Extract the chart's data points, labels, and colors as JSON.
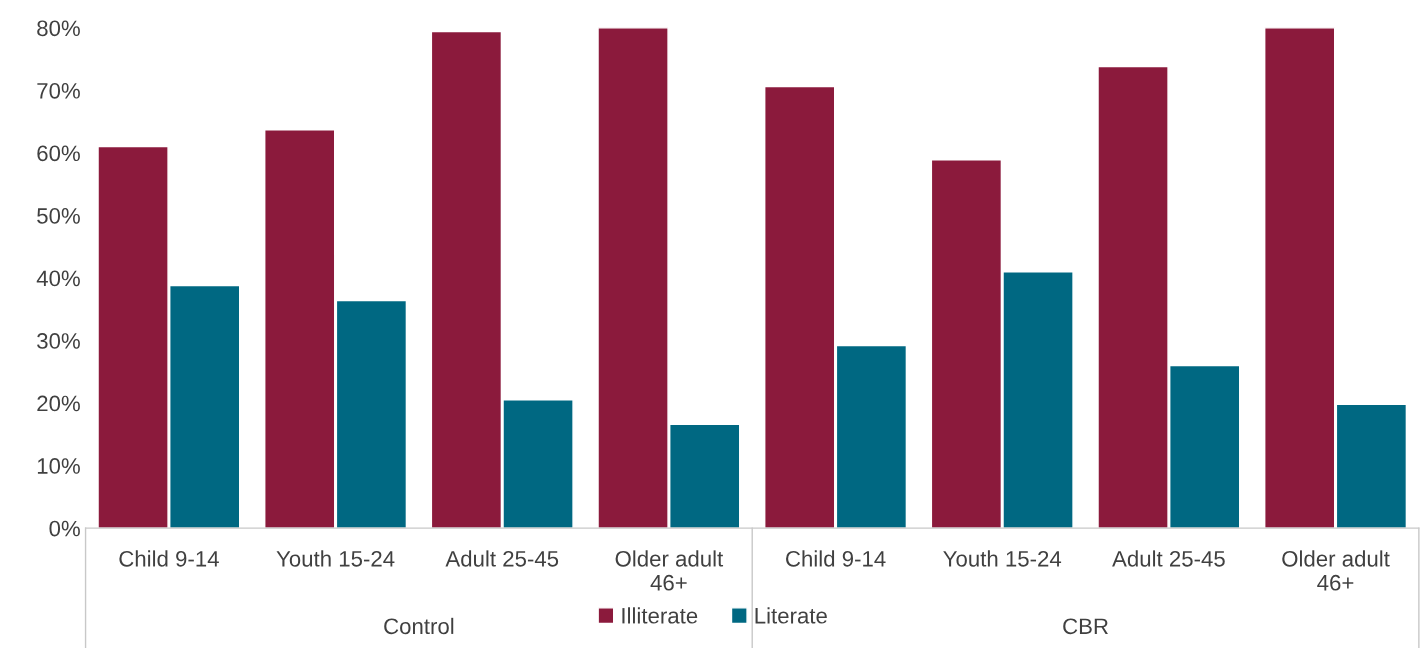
{
  "chart_data": {
    "type": "bar",
    "categories": [
      "Child 9-14",
      "Youth 15-24",
      "Adult 25-45",
      "Older adult\n46+",
      "Child 9-14",
      "Youth 15-24",
      "Adult 25-45",
      "Older adult\n46+"
    ],
    "series": [
      {
        "name": "Illiterate",
        "color": "#8b1a3c",
        "values": [
          61,
          63.7,
          79.4,
          80,
          70.6,
          58.9,
          73.8,
          80
        ]
      },
      {
        "name": "Literate",
        "color": "#006882",
        "values": [
          38.8,
          36.4,
          20.5,
          16.6,
          29.2,
          41,
          26,
          19.8
        ]
      }
    ],
    "annotations": [
      "Control",
      "CBR"
    ],
    "ylim": [
      0,
      80
    ],
    "yticks": [
      {
        "value": 0,
        "label": "0%"
      },
      {
        "value": 10,
        "label": "10%"
      },
      {
        "value": 20,
        "label": "20%"
      },
      {
        "value": 30,
        "label": "30%"
      },
      {
        "value": 40,
        "label": "40%"
      },
      {
        "value": 50,
        "label": "50%"
      },
      {
        "value": 60,
        "label": "60%"
      },
      {
        "value": 70,
        "label": "70%"
      },
      {
        "value": 80,
        "label": "80%"
      }
    ],
    "grid": false,
    "legend": "bottom"
  }
}
